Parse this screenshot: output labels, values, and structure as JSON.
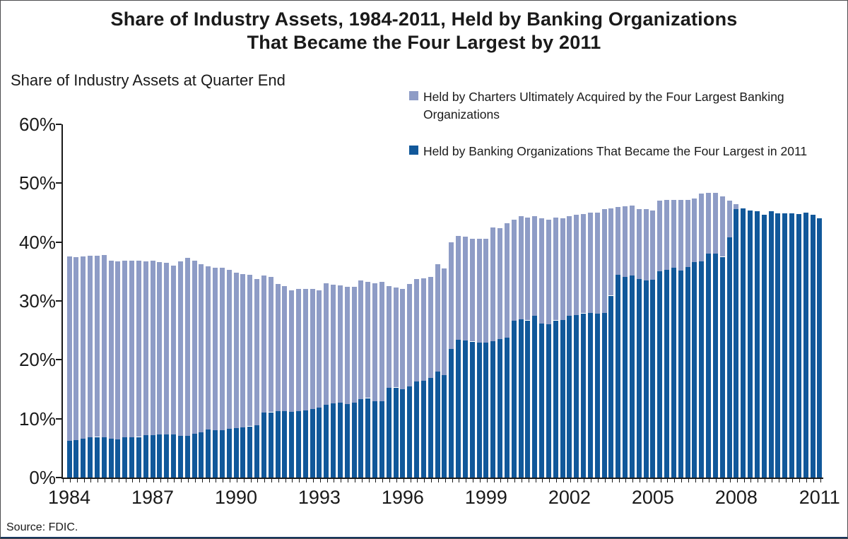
{
  "title": {
    "line1": "Share of Industry Assets, 1984-2011, Held by Banking Organizations",
    "line2": "That Became the Four Largest by 2011"
  },
  "subtitle": "Share of Industry Assets at Quarter End",
  "source": "Source: FDIC.",
  "colors": {
    "acquired_charters": "#8e9cc6",
    "four_largest": "#11589a",
    "axis": "#1a1a1a",
    "bottom_rule": "#17375e"
  },
  "legend": [
    {
      "label": "Held by Charters Ultimately Acquired by the Four Largest Banking Organizations",
      "color": "#8e9cc6"
    },
    {
      "label": "Held by Banking Organizations That Became the Four Largest in 2011",
      "color": "#11589a"
    }
  ],
  "chart_data": {
    "type": "bar",
    "stacked": true,
    "title": "Share of Industry Assets, 1984-2011, Held by Banking Organizations That Became the Four Largest by 2011",
    "ylabel": "Share of Industry Assets at Quarter End",
    "ylim": [
      0,
      60
    ],
    "y_tick_labels": [
      "0%",
      "10%",
      "20%",
      "30%",
      "40%",
      "50%",
      "60%"
    ],
    "x_tick_labels": [
      "1984",
      "1987",
      "1990",
      "1993",
      "1996",
      "1999",
      "2002",
      "2005",
      "2008",
      "2011"
    ],
    "x_label_every_n_bars": 12,
    "grid": false,
    "legend_position": "top-right",
    "quarters": [
      "1984Q1",
      "1984Q2",
      "1984Q3",
      "1984Q4",
      "1985Q1",
      "1985Q2",
      "1985Q3",
      "1985Q4",
      "1986Q1",
      "1986Q2",
      "1986Q3",
      "1986Q4",
      "1987Q1",
      "1987Q2",
      "1987Q3",
      "1987Q4",
      "1988Q1",
      "1988Q2",
      "1988Q3",
      "1988Q4",
      "1989Q1",
      "1989Q2",
      "1989Q3",
      "1989Q4",
      "1990Q1",
      "1990Q2",
      "1990Q3",
      "1990Q4",
      "1991Q1",
      "1991Q2",
      "1991Q3",
      "1991Q4",
      "1992Q1",
      "1992Q2",
      "1992Q3",
      "1992Q4",
      "1993Q1",
      "1993Q2",
      "1993Q3",
      "1993Q4",
      "1994Q1",
      "1994Q2",
      "1994Q3",
      "1994Q4",
      "1995Q1",
      "1995Q2",
      "1995Q3",
      "1995Q4",
      "1996Q1",
      "1996Q2",
      "1996Q3",
      "1996Q4",
      "1997Q1",
      "1997Q2",
      "1997Q3",
      "1997Q4",
      "1998Q1",
      "1998Q2",
      "1998Q3",
      "1998Q4",
      "1999Q1",
      "1999Q2",
      "1999Q3",
      "1999Q4",
      "2000Q1",
      "2000Q2",
      "2000Q3",
      "2000Q4",
      "2001Q1",
      "2001Q2",
      "2001Q3",
      "2001Q4",
      "2002Q1",
      "2002Q2",
      "2002Q3",
      "2002Q4",
      "2003Q1",
      "2003Q2",
      "2003Q3",
      "2003Q4",
      "2004Q1",
      "2004Q2",
      "2004Q3",
      "2004Q4",
      "2005Q1",
      "2005Q2",
      "2005Q3",
      "2005Q4",
      "2006Q1",
      "2006Q2",
      "2006Q3",
      "2006Q4",
      "2007Q1",
      "2007Q2",
      "2007Q3",
      "2007Q4",
      "2008Q1",
      "2008Q2",
      "2008Q3",
      "2008Q4",
      "2009Q1",
      "2009Q2",
      "2009Q3",
      "2009Q4",
      "2010Q1",
      "2010Q2",
      "2010Q3",
      "2010Q4",
      "2011Q1"
    ],
    "series": [
      {
        "name": "Held by Banking Organizations That Became the Four Largest in 2011",
        "color": "#11589a",
        "values": [
          6.2,
          6.4,
          6.6,
          6.8,
          6.9,
          6.8,
          6.6,
          6.5,
          6.8,
          6.9,
          6.9,
          7.2,
          7.2,
          7.3,
          7.3,
          7.3,
          7.1,
          7.1,
          7.4,
          7.7,
          8.2,
          8.0,
          8.1,
          8.3,
          8.4,
          8.5,
          8.7,
          8.9,
          11.0,
          11.1,
          11.3,
          11.3,
          11.2,
          11.3,
          11.4,
          11.6,
          11.9,
          12.4,
          12.6,
          12.7,
          12.5,
          12.7,
          13.3,
          13.5,
          13.0,
          13.0,
          15.2,
          15.3,
          15.0,
          15.5,
          16.3,
          16.5,
          16.9,
          18.0,
          17.4,
          21.8,
          23.4,
          23.3,
          23.1,
          22.9,
          22.9,
          23.2,
          23.5,
          23.8,
          26.6,
          26.9,
          26.7,
          27.5,
          26.2,
          26.1,
          26.7,
          26.8,
          27.5,
          27.6,
          27.9,
          28.0,
          27.8,
          28.0,
          30.9,
          34.4,
          34.1,
          34.3,
          33.7,
          33.5,
          33.6,
          35.0,
          35.3,
          35.6,
          35.2,
          35.8,
          36.6,
          36.7,
          38.0,
          38.0,
          37.5,
          40.8,
          45.6,
          45.7,
          45.4,
          45.2,
          44.6,
          45.3,
          44.9,
          44.9,
          44.9,
          44.8,
          45.0,
          44.6,
          44.1
        ]
      },
      {
        "name": "Held by Charters Ultimately Acquired by the Four Largest Banking Organizations",
        "color": "#8e9cc6",
        "values": [
          31.4,
          31.0,
          31.0,
          30.9,
          30.8,
          31.0,
          30.2,
          30.2,
          30.0,
          30.0,
          29.9,
          29.5,
          29.7,
          29.3,
          29.2,
          28.7,
          29.6,
          30.2,
          29.4,
          28.5,
          27.7,
          27.7,
          27.6,
          27.0,
          26.4,
          26.1,
          25.7,
          24.8,
          23.3,
          23.0,
          21.6,
          21.2,
          20.6,
          20.8,
          20.7,
          20.5,
          19.9,
          20.6,
          20.2,
          20.0,
          19.9,
          19.7,
          20.2,
          19.7,
          20.0,
          20.3,
          17.3,
          17.0,
          17.1,
          17.4,
          17.4,
          17.4,
          17.2,
          18.3,
          18.1,
          18.2,
          17.7,
          17.6,
          17.5,
          17.7,
          17.7,
          19.3,
          18.9,
          19.4,
          17.2,
          17.5,
          17.5,
          16.9,
          17.8,
          17.7,
          17.5,
          17.2,
          16.9,
          17.0,
          16.9,
          17.0,
          17.2,
          17.6,
          14.8,
          11.6,
          12.0,
          11.9,
          11.9,
          12.1,
          11.8,
          12.0,
          11.9,
          11.6,
          12.0,
          11.4,
          10.8,
          11.5,
          10.4,
          10.4,
          10.3,
          6.2,
          0.8,
          0.0,
          0.0,
          0.0,
          0.0,
          0.0,
          0.0,
          0.0,
          0.0,
          0.0,
          0.0,
          0.0,
          0.0
        ]
      }
    ]
  }
}
